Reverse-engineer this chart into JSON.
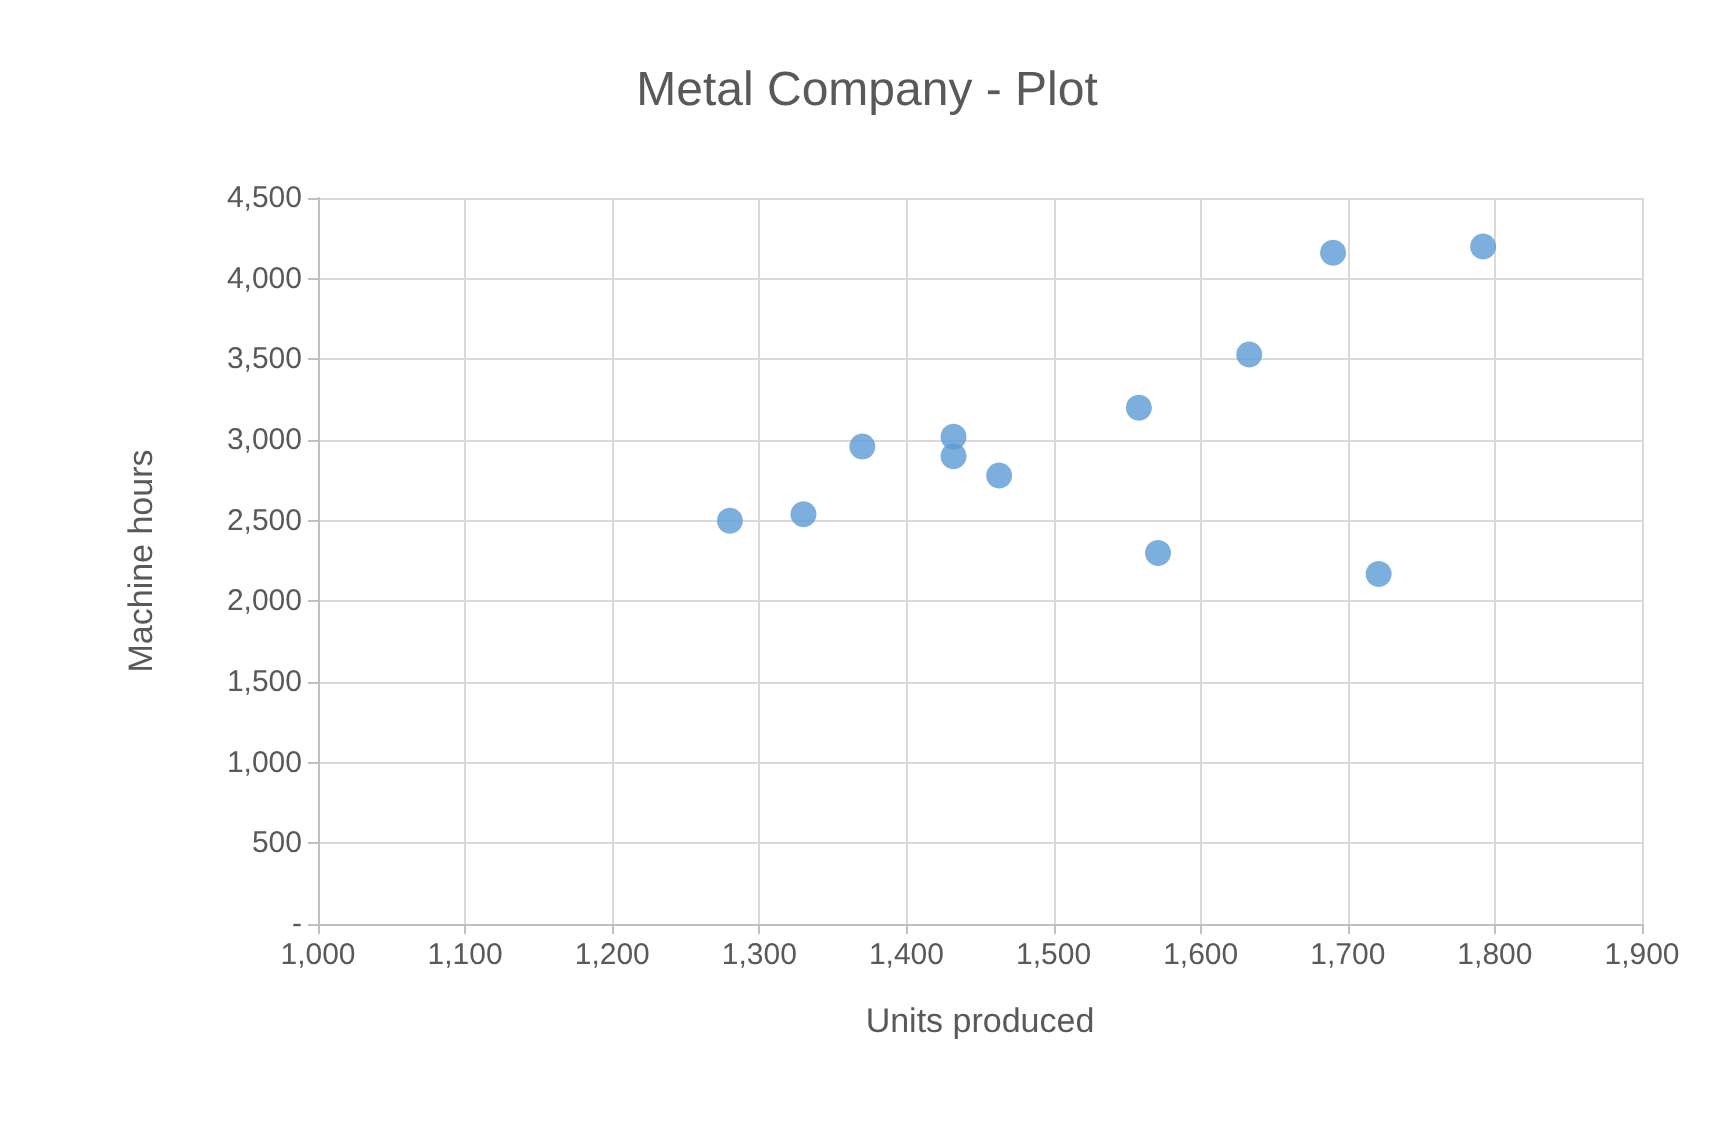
{
  "chart_data": {
    "type": "scatter",
    "title": "Metal Company - Plot",
    "xlabel": "Units produced",
    "ylabel": "Machine hours",
    "x": [
      1280,
      1330,
      1370,
      1432,
      1432,
      1463,
      1558,
      1571,
      1633,
      1690,
      1721,
      1792
    ],
    "series": [
      {
        "color": "#5b9bd5",
        "values": [
          2500,
          2540,
          2960,
          3020,
          2900,
          2780,
          3200,
          2300,
          3530,
          4160,
          2170,
          4200
        ]
      }
    ],
    "xlim": [
      1000,
      1900
    ],
    "xticks": [
      {
        "value": 1000,
        "label": "1,000"
      },
      {
        "value": 1100,
        "label": "1,100"
      },
      {
        "value": 1200,
        "label": "1,200"
      },
      {
        "value": 1300,
        "label": "1,300"
      },
      {
        "value": 1400,
        "label": "1,400"
      },
      {
        "value": 1500,
        "label": "1,500"
      },
      {
        "value": 1600,
        "label": "1,600"
      },
      {
        "value": 1700,
        "label": "1,700"
      },
      {
        "value": 1800,
        "label": "1,800"
      },
      {
        "value": 1900,
        "label": "1,900"
      }
    ],
    "ylim": [
      0,
      4500
    ],
    "yticks": [
      {
        "value": 0,
        "label": "-"
      },
      {
        "value": 500,
        "label": "500"
      },
      {
        "value": 1000,
        "label": "1,000"
      },
      {
        "value": 1500,
        "label": "1,500"
      },
      {
        "value": 2000,
        "label": "2,000"
      },
      {
        "value": 2500,
        "label": "2,500"
      },
      {
        "value": 3000,
        "label": "3,000"
      },
      {
        "value": 3500,
        "label": "3,500"
      },
      {
        "value": 4000,
        "label": "4,000"
      },
      {
        "value": 4500,
        "label": "4,500"
      }
    ],
    "grid": true,
    "marker": "circle"
  }
}
